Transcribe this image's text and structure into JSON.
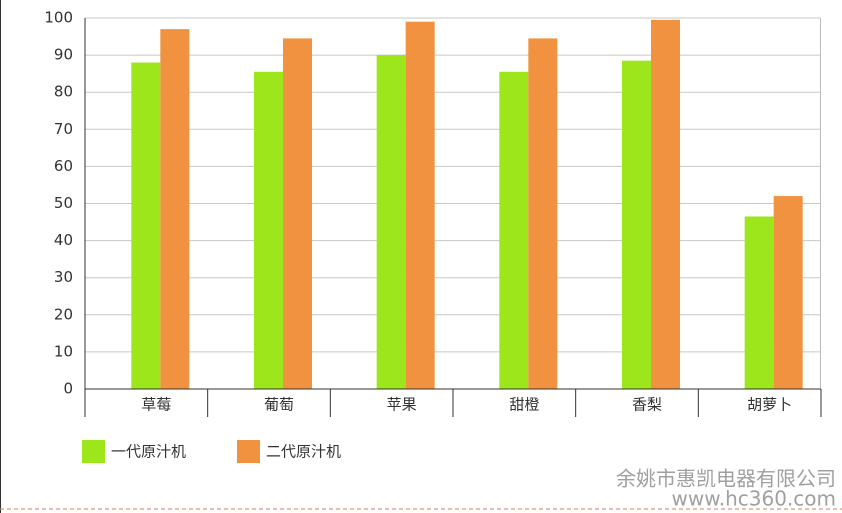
{
  "chart_data": {
    "type": "bar",
    "categories": [
      "草莓",
      "葡萄",
      "苹果",
      "甜橙",
      "香梨",
      "胡萝卜"
    ],
    "series": [
      {
        "name": "一代原汁机",
        "color": "#9de61c",
        "values": [
          88,
          85.5,
          90,
          85.5,
          88.5,
          46.5
        ]
      },
      {
        "name": "二代原汁机",
        "color": "#f0923f",
        "values": [
          97,
          94.5,
          99,
          94.5,
          99.5,
          52
        ]
      }
    ],
    "ylim": [
      0,
      100
    ],
    "yticks": [
      0,
      10,
      20,
      30,
      40,
      50,
      60,
      70,
      80,
      90,
      100
    ],
    "grid": true
  },
  "watermark": {
    "company": "余姚市惠凯电器有限公司",
    "site": "www.hc360.com"
  }
}
